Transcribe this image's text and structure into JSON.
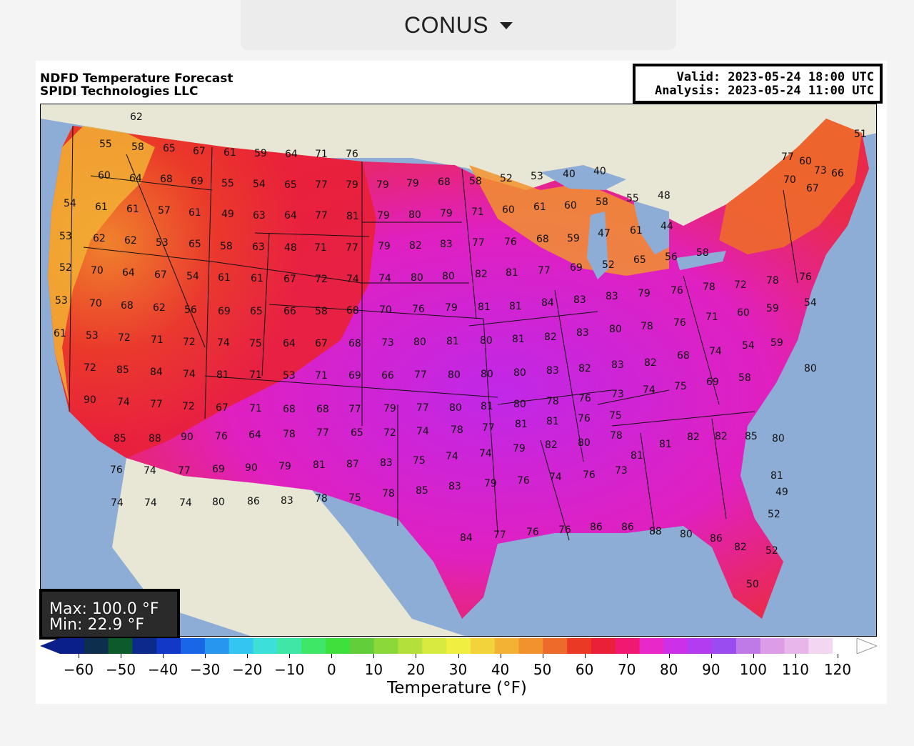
{
  "region_selector": {
    "label": "CONUS",
    "icon": "caret-down-icon"
  },
  "figure": {
    "title_line1": "NDFD Temperature Forecast",
    "title_line2": "SPIDI Technologies LLC",
    "valid": "Valid: 2023-05-24 18:00 UTC",
    "analysis": "Analysis: 2023-05-24 11:00 UTC",
    "max": "Max: 100.0 °F",
    "min": "Min: 22.9 °F"
  },
  "colorbar": {
    "label": "Temperature (°F)",
    "ticks": [
      "−60",
      "−50",
      "−40",
      "−30",
      "−20",
      "−10",
      "0",
      "10",
      "20",
      "30",
      "40",
      "50",
      "60",
      "70",
      "80",
      "90",
      "100",
      "110",
      "120"
    ],
    "colors": [
      "#0a1f8a",
      "#0e2e4e",
      "#0d5a2b",
      "#0b2a8c",
      "#1238c8",
      "#1a66e8",
      "#2796ef",
      "#32c6f0",
      "#3ce0d8",
      "#3fe6a6",
      "#3ee766",
      "#3ee13c",
      "#62cf3a",
      "#8ad83a",
      "#b3e03a",
      "#d7ea40",
      "#f0ee40",
      "#f2d33c",
      "#f3b234",
      "#f1922e",
      "#ee6a2a",
      "#ea3a26",
      "#e92038",
      "#f01870",
      "#e828c8",
      "#cc30e8",
      "#b43cf0",
      "#9b4cf0",
      "#c07ae8",
      "#dc9ce8",
      "#e8b6ea",
      "#f2d6f2",
      "#ffffff"
    ]
  },
  "map_values": [
    {
      "v": "62"
    },
    {
      "v": "55"
    },
    {
      "v": "58"
    },
    {
      "v": "65"
    },
    {
      "v": "67"
    },
    {
      "v": "61"
    },
    {
      "v": "59"
    },
    {
      "v": "64"
    },
    {
      "v": "71"
    },
    {
      "v": "76"
    },
    {
      "v": "60"
    },
    {
      "v": "64"
    },
    {
      "v": "68"
    },
    {
      "v": "69"
    },
    {
      "v": "55"
    },
    {
      "v": "54"
    },
    {
      "v": "65"
    },
    {
      "v": "77"
    },
    {
      "v": "79"
    },
    {
      "v": "79"
    },
    {
      "v": "79"
    },
    {
      "v": "68"
    },
    {
      "v": "58"
    },
    {
      "v": "52"
    },
    {
      "v": "53"
    },
    {
      "v": "40"
    },
    {
      "v": "40"
    },
    {
      "v": "54"
    },
    {
      "v": "61"
    },
    {
      "v": "61"
    },
    {
      "v": "57"
    },
    {
      "v": "61"
    },
    {
      "v": "49"
    },
    {
      "v": "63"
    },
    {
      "v": "64"
    },
    {
      "v": "77"
    },
    {
      "v": "81"
    },
    {
      "v": "79"
    },
    {
      "v": "80"
    },
    {
      "v": "79"
    },
    {
      "v": "71"
    },
    {
      "v": "60"
    },
    {
      "v": "61"
    },
    {
      "v": "60"
    },
    {
      "v": "58"
    },
    {
      "v": "55"
    },
    {
      "v": "48"
    },
    {
      "v": "53"
    },
    {
      "v": "62"
    },
    {
      "v": "62"
    },
    {
      "v": "53"
    },
    {
      "v": "65"
    },
    {
      "v": "58"
    },
    {
      "v": "63"
    },
    {
      "v": "48"
    },
    {
      "v": "71"
    },
    {
      "v": "77"
    },
    {
      "v": "79"
    },
    {
      "v": "82"
    },
    {
      "v": "83"
    },
    {
      "v": "77"
    },
    {
      "v": "76"
    },
    {
      "v": "68"
    },
    {
      "v": "59"
    },
    {
      "v": "47"
    },
    {
      "v": "61"
    },
    {
      "v": "44"
    },
    {
      "v": "52"
    },
    {
      "v": "70"
    },
    {
      "v": "64"
    },
    {
      "v": "67"
    },
    {
      "v": "54"
    },
    {
      "v": "61"
    },
    {
      "v": "61"
    },
    {
      "v": "67"
    },
    {
      "v": "72"
    },
    {
      "v": "74"
    },
    {
      "v": "74"
    },
    {
      "v": "80"
    },
    {
      "v": "80"
    },
    {
      "v": "82"
    },
    {
      "v": "81"
    },
    {
      "v": "77"
    },
    {
      "v": "69"
    },
    {
      "v": "52"
    },
    {
      "v": "65"
    },
    {
      "v": "56"
    },
    {
      "v": "58"
    },
    {
      "v": "53"
    },
    {
      "v": "70"
    },
    {
      "v": "68"
    },
    {
      "v": "62"
    },
    {
      "v": "56"
    },
    {
      "v": "69"
    },
    {
      "v": "65"
    },
    {
      "v": "66"
    },
    {
      "v": "58"
    },
    {
      "v": "68"
    },
    {
      "v": "70"
    },
    {
      "v": "76"
    },
    {
      "v": "79"
    },
    {
      "v": "81"
    },
    {
      "v": "81"
    },
    {
      "v": "84"
    },
    {
      "v": "83"
    },
    {
      "v": "83"
    },
    {
      "v": "79"
    },
    {
      "v": "76"
    },
    {
      "v": "78"
    },
    {
      "v": "72"
    },
    {
      "v": "78"
    },
    {
      "v": "76"
    },
    {
      "v": "54"
    },
    {
      "v": "61"
    },
    {
      "v": "53"
    },
    {
      "v": "72"
    },
    {
      "v": "71"
    },
    {
      "v": "72"
    },
    {
      "v": "74"
    },
    {
      "v": "75"
    },
    {
      "v": "64"
    },
    {
      "v": "67"
    },
    {
      "v": "68"
    },
    {
      "v": "73"
    },
    {
      "v": "80"
    },
    {
      "v": "81"
    },
    {
      "v": "80"
    },
    {
      "v": "81"
    },
    {
      "v": "82"
    },
    {
      "v": "83"
    },
    {
      "v": "80"
    },
    {
      "v": "78"
    },
    {
      "v": "76"
    },
    {
      "v": "71"
    },
    {
      "v": "60"
    },
    {
      "v": "59"
    },
    {
      "v": "72"
    },
    {
      "v": "85"
    },
    {
      "v": "84"
    },
    {
      "v": "74"
    },
    {
      "v": "81"
    },
    {
      "v": "71"
    },
    {
      "v": "53"
    },
    {
      "v": "71"
    },
    {
      "v": "69"
    },
    {
      "v": "66"
    },
    {
      "v": "77"
    },
    {
      "v": "80"
    },
    {
      "v": "80"
    },
    {
      "v": "80"
    },
    {
      "v": "83"
    },
    {
      "v": "82"
    },
    {
      "v": "83"
    },
    {
      "v": "82"
    },
    {
      "v": "68"
    },
    {
      "v": "74"
    },
    {
      "v": "54"
    },
    {
      "v": "59"
    },
    {
      "v": "80"
    },
    {
      "v": "90"
    },
    {
      "v": "74"
    },
    {
      "v": "77"
    },
    {
      "v": "72"
    },
    {
      "v": "67"
    },
    {
      "v": "71"
    },
    {
      "v": "68"
    },
    {
      "v": "68"
    },
    {
      "v": "77"
    },
    {
      "v": "79"
    },
    {
      "v": "77"
    },
    {
      "v": "80"
    },
    {
      "v": "81"
    },
    {
      "v": "80"
    },
    {
      "v": "78"
    },
    {
      "v": "76"
    },
    {
      "v": "73"
    },
    {
      "v": "74"
    },
    {
      "v": "75"
    },
    {
      "v": "69"
    },
    {
      "v": "58"
    },
    {
      "v": "85"
    },
    {
      "v": "88"
    },
    {
      "v": "90"
    },
    {
      "v": "76"
    },
    {
      "v": "64"
    },
    {
      "v": "78"
    },
    {
      "v": "77"
    },
    {
      "v": "65"
    },
    {
      "v": "72"
    },
    {
      "v": "74"
    },
    {
      "v": "78"
    },
    {
      "v": "77"
    },
    {
      "v": "81"
    },
    {
      "v": "81"
    },
    {
      "v": "76"
    },
    {
      "v": "75"
    },
    {
      "v": "76"
    },
    {
      "v": "74"
    },
    {
      "v": "77"
    },
    {
      "v": "69"
    },
    {
      "v": "90"
    },
    {
      "v": "79"
    },
    {
      "v": "81"
    },
    {
      "v": "87"
    },
    {
      "v": "83"
    },
    {
      "v": "75"
    },
    {
      "v": "74"
    },
    {
      "v": "74"
    },
    {
      "v": "79"
    },
    {
      "v": "82"
    },
    {
      "v": "80"
    },
    {
      "v": "78"
    },
    {
      "v": "74"
    },
    {
      "v": "74"
    },
    {
      "v": "74"
    },
    {
      "v": "80"
    },
    {
      "v": "86"
    },
    {
      "v": "83"
    },
    {
      "v": "78"
    },
    {
      "v": "75"
    },
    {
      "v": "78"
    },
    {
      "v": "85"
    },
    {
      "v": "83"
    },
    {
      "v": "79"
    },
    {
      "v": "76"
    },
    {
      "v": "74"
    },
    {
      "v": "76"
    },
    {
      "v": "73"
    },
    {
      "v": "81"
    },
    {
      "v": "81"
    },
    {
      "v": "82"
    },
    {
      "v": "82"
    },
    {
      "v": "85"
    },
    {
      "v": "80"
    },
    {
      "v": "81"
    },
    {
      "v": "84"
    },
    {
      "v": "77"
    },
    {
      "v": "76"
    },
    {
      "v": "76"
    },
    {
      "v": "86"
    },
    {
      "v": "86"
    },
    {
      "v": "88"
    },
    {
      "v": "80"
    },
    {
      "v": "86"
    },
    {
      "v": "82"
    },
    {
      "v": "52"
    },
    {
      "v": "52"
    },
    {
      "v": "49"
    },
    {
      "v": "50"
    },
    {
      "v": "51"
    },
    {
      "v": "66"
    },
    {
      "v": "60"
    },
    {
      "v": "70"
    },
    {
      "v": "67"
    },
    {
      "v": "73"
    },
    {
      "v": "77"
    }
  ]
}
